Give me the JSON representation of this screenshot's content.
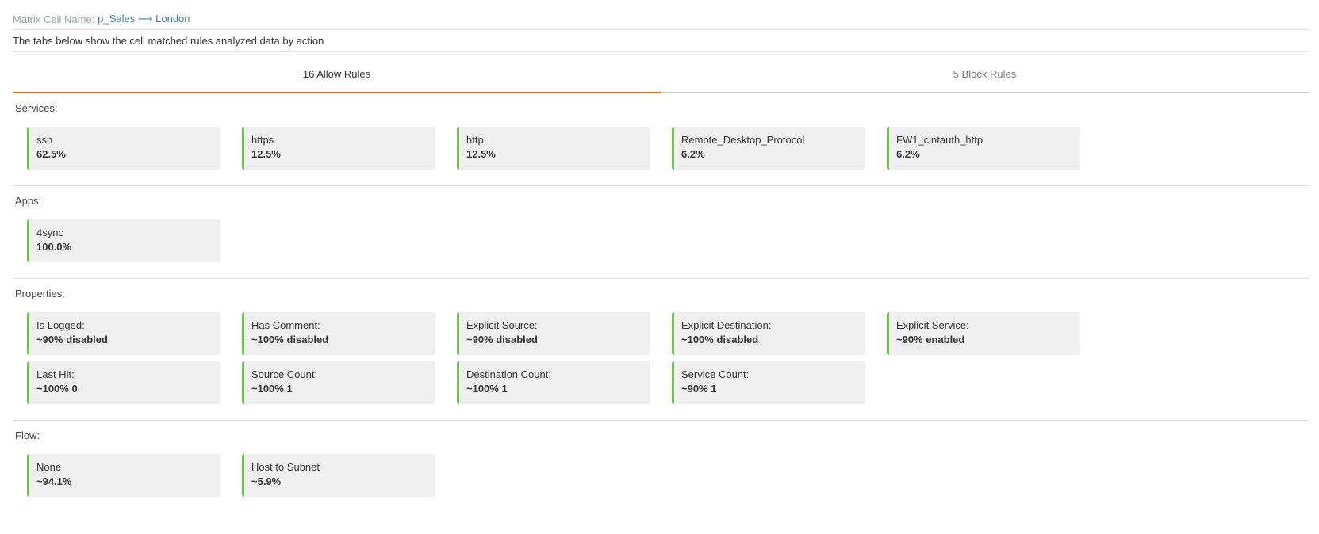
{
  "header": {
    "matrix_label": "Matrix Cell Name:",
    "matrix_value": "p_Sales ⟶ London",
    "description": "The tabs below show the cell matched rules analyzed data by action"
  },
  "tabs": [
    {
      "label": "16 Allow Rules",
      "active": true
    },
    {
      "label": "5 Block Rules",
      "active": false
    }
  ],
  "sections": {
    "services": {
      "title": "Services:",
      "items": [
        {
          "name": "ssh",
          "value": "62.5%"
        },
        {
          "name": "https",
          "value": "12.5%"
        },
        {
          "name": "http",
          "value": "12.5%"
        },
        {
          "name": "Remote_Desktop_Protocol",
          "value": "6.2%"
        },
        {
          "name": "FW1_clntauth_http",
          "value": "6.2%"
        }
      ]
    },
    "apps": {
      "title": "Apps:",
      "items": [
        {
          "name": "4sync",
          "value": "100.0%"
        }
      ]
    },
    "properties": {
      "title": "Properties:",
      "items": [
        {
          "name": "Is Logged:",
          "value": "~90% disabled"
        },
        {
          "name": "Has Comment:",
          "value": "~100% disabled"
        },
        {
          "name": "Explicit Source:",
          "value": "~90% disabled"
        },
        {
          "name": "Explicit Destination:",
          "value": "~100% disabled"
        },
        {
          "name": "Explicit Service:",
          "value": "~90% enabled"
        },
        {
          "name": "Last Hit:",
          "value": "~100% 0"
        },
        {
          "name": "Source Count:",
          "value": "~100% 1"
        },
        {
          "name": "Destination Count:",
          "value": "~100% 1"
        },
        {
          "name": "Service Count:",
          "value": "~90% 1"
        }
      ]
    },
    "flow": {
      "title": "Flow:",
      "items": [
        {
          "name": "None",
          "value": "~94.1%"
        },
        {
          "name": "Host to Subnet",
          "value": "~5.9%"
        }
      ]
    }
  },
  "colors": {
    "accent_tab": "#d2691e",
    "card_border": "#6cc24a",
    "card_bg": "#efefef",
    "link": "#3f7fa0"
  }
}
